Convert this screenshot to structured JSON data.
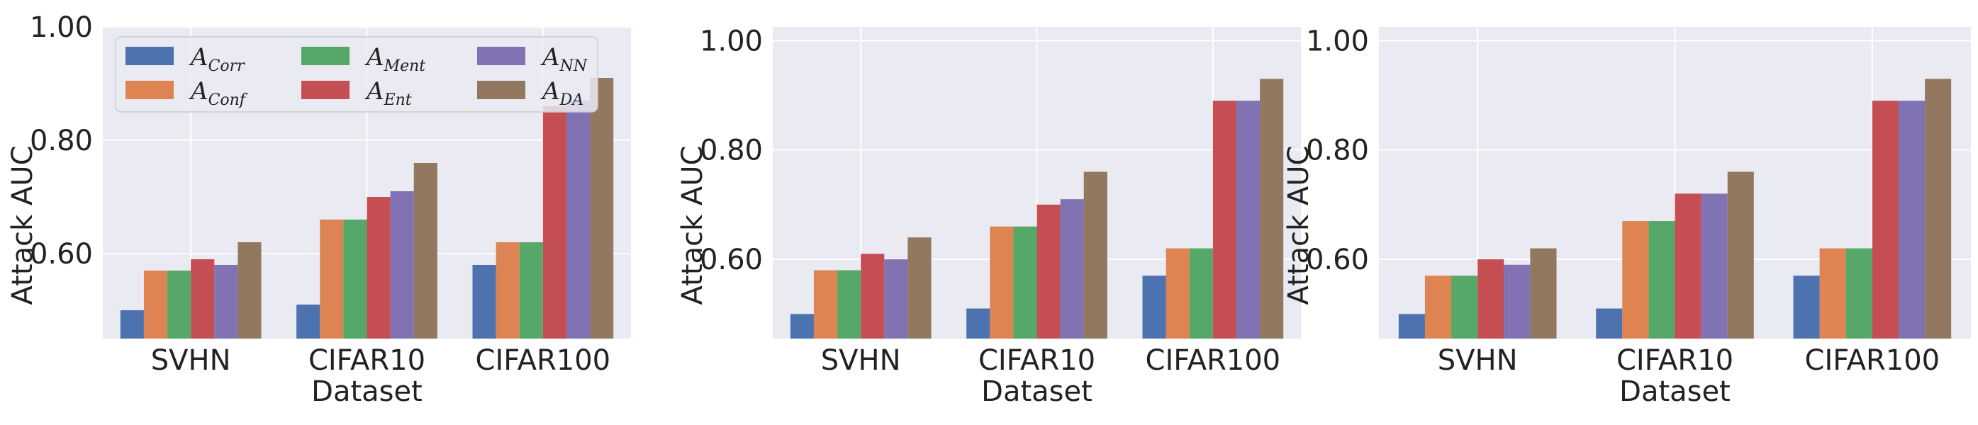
{
  "chart_data": [
    {
      "type": "bar",
      "title": "",
      "xlabel": "Dataset",
      "ylabel": "Attack AUC",
      "ylim": [
        0.45,
        1.0
      ],
      "yticks": [
        0.6,
        0.8,
        1.0
      ],
      "ytick_labels": [
        "0.60",
        "0.80",
        "1.00"
      ],
      "categories": [
        "SVHN",
        "CIFAR10",
        "CIFAR100"
      ],
      "grid": true,
      "legend_position": "top-left",
      "series": [
        {
          "name": "A",
          "sub": "Corr",
          "color": "#4c72b0",
          "values": [
            0.5,
            0.51,
            0.58
          ]
        },
        {
          "name": "A",
          "sub": "Conf",
          "color": "#dd8452",
          "values": [
            0.57,
            0.66,
            0.62
          ]
        },
        {
          "name": "A",
          "sub": "Ment",
          "color": "#55a868",
          "values": [
            0.57,
            0.66,
            0.62
          ]
        },
        {
          "name": "A",
          "sub": "Ent",
          "color": "#c44e52",
          "values": [
            0.59,
            0.7,
            0.86
          ]
        },
        {
          "name": "A",
          "sub": "NN",
          "color": "#8172b3",
          "values": [
            0.58,
            0.71,
            0.87
          ]
        },
        {
          "name": "A",
          "sub": "DA",
          "color": "#937860",
          "values": [
            0.62,
            0.76,
            0.91
          ]
        }
      ]
    },
    {
      "type": "bar",
      "title": "",
      "xlabel": "Dataset",
      "ylabel": "Attack AUC",
      "ylim": [
        0.455,
        1.025
      ],
      "yticks": [
        0.6,
        0.8,
        1.0
      ],
      "ytick_labels": [
        "0.60",
        "0.80",
        "1.00"
      ],
      "categories": [
        "SVHN",
        "CIFAR10",
        "CIFAR100"
      ],
      "grid": true,
      "series": [
        {
          "name": "A",
          "sub": "Corr",
          "color": "#4c72b0",
          "values": [
            0.5,
            0.51,
            0.57
          ]
        },
        {
          "name": "A",
          "sub": "Conf",
          "color": "#dd8452",
          "values": [
            0.58,
            0.66,
            0.62
          ]
        },
        {
          "name": "A",
          "sub": "Ment",
          "color": "#55a868",
          "values": [
            0.58,
            0.66,
            0.62
          ]
        },
        {
          "name": "A",
          "sub": "Ent",
          "color": "#c44e52",
          "values": [
            0.61,
            0.7,
            0.89
          ]
        },
        {
          "name": "A",
          "sub": "NN",
          "color": "#8172b3",
          "values": [
            0.6,
            0.71,
            0.89
          ]
        },
        {
          "name": "A",
          "sub": "DA",
          "color": "#937860",
          "values": [
            0.64,
            0.76,
            0.93
          ]
        }
      ]
    },
    {
      "type": "bar",
      "title": "",
      "xlabel": "Dataset",
      "ylabel": "Attack AUC",
      "ylim": [
        0.455,
        1.025
      ],
      "yticks": [
        0.6,
        0.8,
        1.0
      ],
      "ytick_labels": [
        "0.60",
        "0.80",
        "1.00"
      ],
      "categories": [
        "SVHN",
        "CIFAR10",
        "CIFAR100"
      ],
      "grid": true,
      "series": [
        {
          "name": "A",
          "sub": "Corr",
          "color": "#4c72b0",
          "values": [
            0.5,
            0.51,
            0.57
          ]
        },
        {
          "name": "A",
          "sub": "Conf",
          "color": "#dd8452",
          "values": [
            0.57,
            0.67,
            0.62
          ]
        },
        {
          "name": "A",
          "sub": "Ment",
          "color": "#55a868",
          "values": [
            0.57,
            0.67,
            0.62
          ]
        },
        {
          "name": "A",
          "sub": "Ent",
          "color": "#c44e52",
          "values": [
            0.6,
            0.72,
            0.89
          ]
        },
        {
          "name": "A",
          "sub": "NN",
          "color": "#8172b3",
          "values": [
            0.59,
            0.72,
            0.89
          ]
        },
        {
          "name": "A",
          "sub": "DA",
          "color": "#937860",
          "values": [
            0.62,
            0.76,
            0.93
          ]
        }
      ]
    }
  ]
}
